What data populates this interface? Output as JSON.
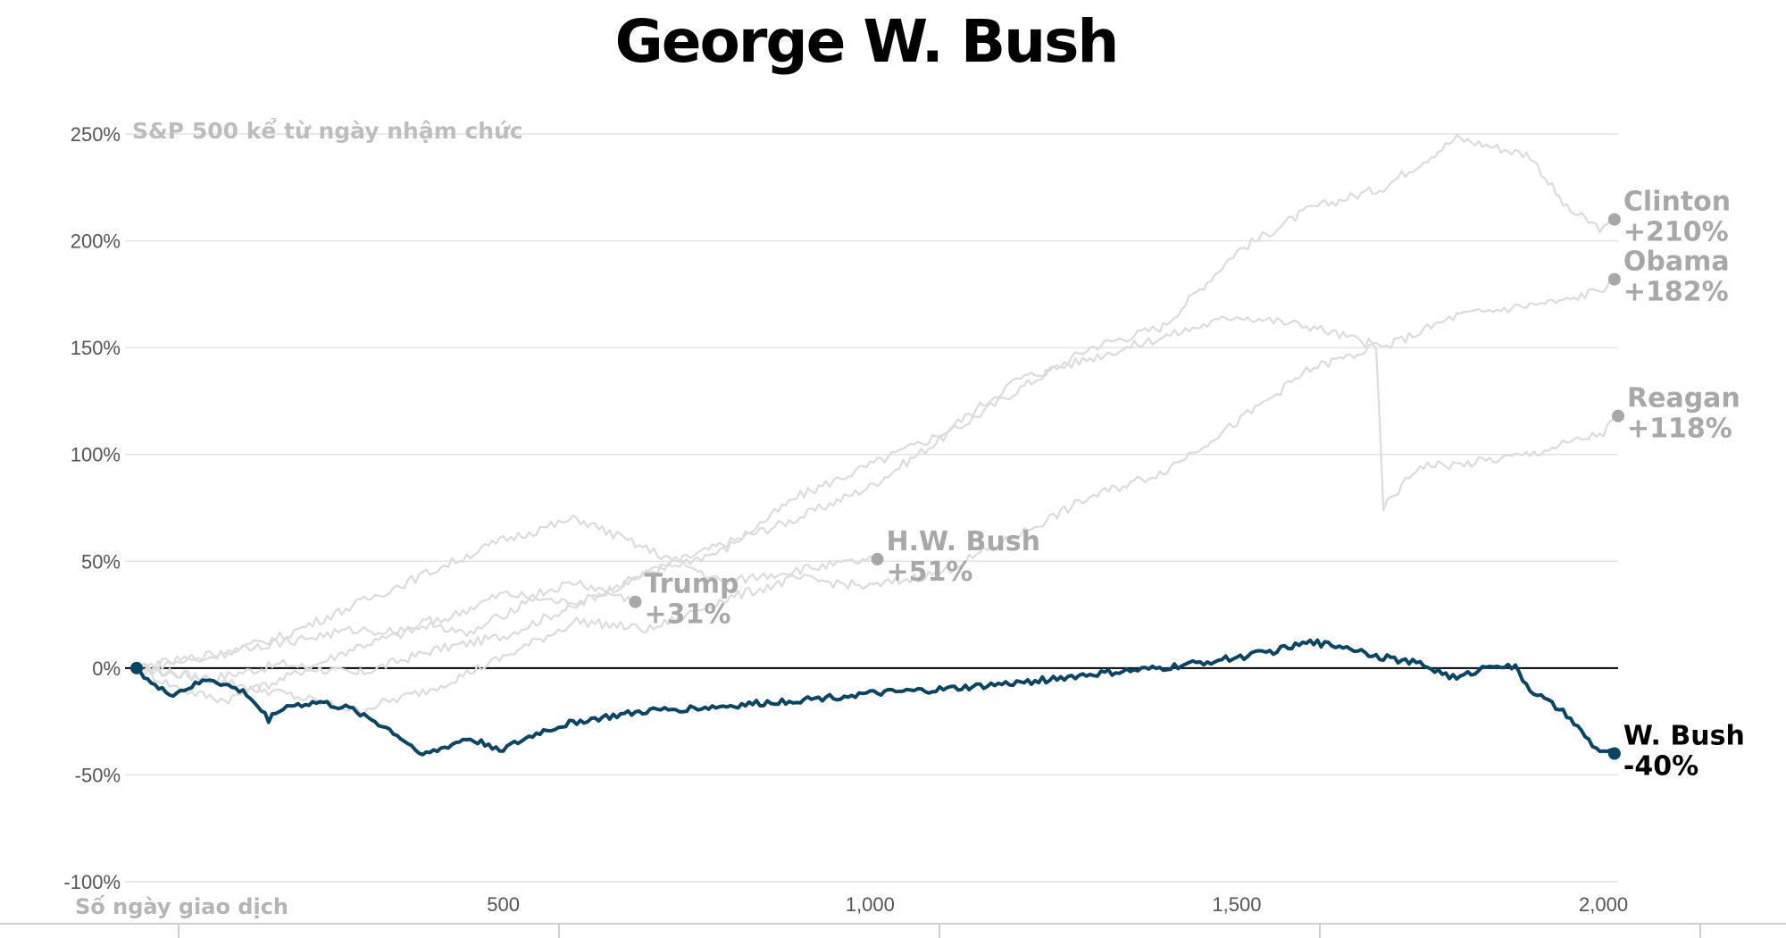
{
  "title": "George W. Bush",
  "chart_data": {
    "type": "line",
    "subtitle": "S&P 500 kể từ ngày nhậm chức",
    "xlabel": "Số ngày giao dịch",
    "ylabel": "",
    "xlim": [
      0,
      2020
    ],
    "ylim": [
      -100,
      250
    ],
    "yticks": [
      250,
      200,
      150,
      100,
      50,
      0,
      -50,
      -100
    ],
    "ytick_labels": [
      "250%",
      "200%",
      "150%",
      "100%",
      "50%",
      "0%",
      "-50%",
      "-100%"
    ],
    "xticks": [
      500,
      1000,
      1500,
      2000
    ],
    "xtick_labels": [
      "500",
      "1,000",
      "1,500",
      "2,000"
    ],
    "grid": true,
    "colors": {
      "highlight": "#0c4564",
      "other": "#dcdcdc",
      "label_gray": "#a8a8a8",
      "zero_line": "#000000",
      "grid": "#e4e4e4"
    },
    "series": [
      {
        "name": "Clinton",
        "final_label": "+210%",
        "highlight": false,
        "x": [
          0,
          100,
          200,
          300,
          400,
          500,
          600,
          700,
          800,
          900,
          1000,
          1100,
          1200,
          1300,
          1400,
          1500,
          1600,
          1700,
          1800,
          1900,
          1950,
          2000,
          2015
        ],
        "y": [
          0,
          -5,
          2,
          -3,
          8,
          15,
          30,
          45,
          58,
          70,
          85,
          108,
          130,
          150,
          160,
          195,
          215,
          225,
          248,
          240,
          215,
          205,
          210
        ]
      },
      {
        "name": "Obama",
        "final_label": "+182%",
        "highlight": false,
        "x": [
          0,
          60,
          120,
          200,
          300,
          400,
          500,
          600,
          700,
          800,
          900,
          1000,
          1100,
          1200,
          1300,
          1400,
          1500,
          1600,
          1700,
          1800,
          1900,
          1950,
          2000,
          2015
        ],
        "y": [
          0,
          -10,
          -15,
          -5,
          10,
          20,
          35,
          30,
          45,
          55,
          80,
          95,
          110,
          135,
          145,
          155,
          165,
          160,
          150,
          165,
          170,
          172,
          178,
          182
        ]
      },
      {
        "name": "Reagan",
        "final_label": "+118%",
        "highlight": false,
        "x": [
          0,
          100,
          200,
          300,
          400,
          500,
          600,
          700,
          800,
          900,
          1000,
          1100,
          1200,
          1300,
          1400,
          1500,
          1600,
          1690,
          1700,
          1750,
          1800,
          1900,
          2000,
          2020
        ],
        "y": [
          0,
          -5,
          -12,
          -20,
          -10,
          5,
          22,
          18,
          32,
          42,
          38,
          45,
          62,
          80,
          92,
          115,
          140,
          150,
          75,
          95,
          95,
          100,
          110,
          118
        ]
      },
      {
        "name": "H.W. Bush",
        "final_label": "+51%",
        "highlight": false,
        "x": [
          0,
          100,
          200,
          300,
          400,
          500,
          600,
          700,
          750,
          800,
          900,
          1010
        ],
        "y": [
          0,
          5,
          15,
          30,
          45,
          60,
          70,
          55,
          48,
          40,
          46,
          51
        ]
      },
      {
        "name": "Trump",
        "final_label": "+31%",
        "highlight": false,
        "x": [
          0,
          50,
          100,
          150,
          200,
          250,
          300,
          350,
          400,
          450,
          500,
          550,
          600,
          680
        ],
        "y": [
          0,
          3,
          6,
          10,
          12,
          15,
          18,
          17,
          22,
          15,
          25,
          35,
          40,
          31
        ]
      },
      {
        "name": "W. Bush",
        "final_label": "-40%",
        "highlight": true,
        "x": [
          0,
          30,
          50,
          80,
          100,
          150,
          180,
          200,
          250,
          300,
          350,
          380,
          400,
          450,
          500,
          550,
          600,
          700,
          800,
          900,
          1000,
          1100,
          1200,
          1300,
          1400,
          1500,
          1550,
          1600,
          1650,
          1700,
          1750,
          1800,
          1850,
          1880,
          1900,
          1950,
          1970,
          1990,
          2015
        ],
        "y": [
          0,
          -10,
          -12,
          -8,
          -5,
          -12,
          -24,
          -18,
          -16,
          -20,
          -30,
          -38,
          -40,
          -33,
          -38,
          -30,
          -25,
          -20,
          -18,
          -15,
          -12,
          -10,
          -7,
          -3,
          0,
          5,
          8,
          12,
          10,
          5,
          2,
          -5,
          2,
          0,
          -10,
          -22,
          -30,
          -38,
          -40
        ]
      }
    ]
  }
}
